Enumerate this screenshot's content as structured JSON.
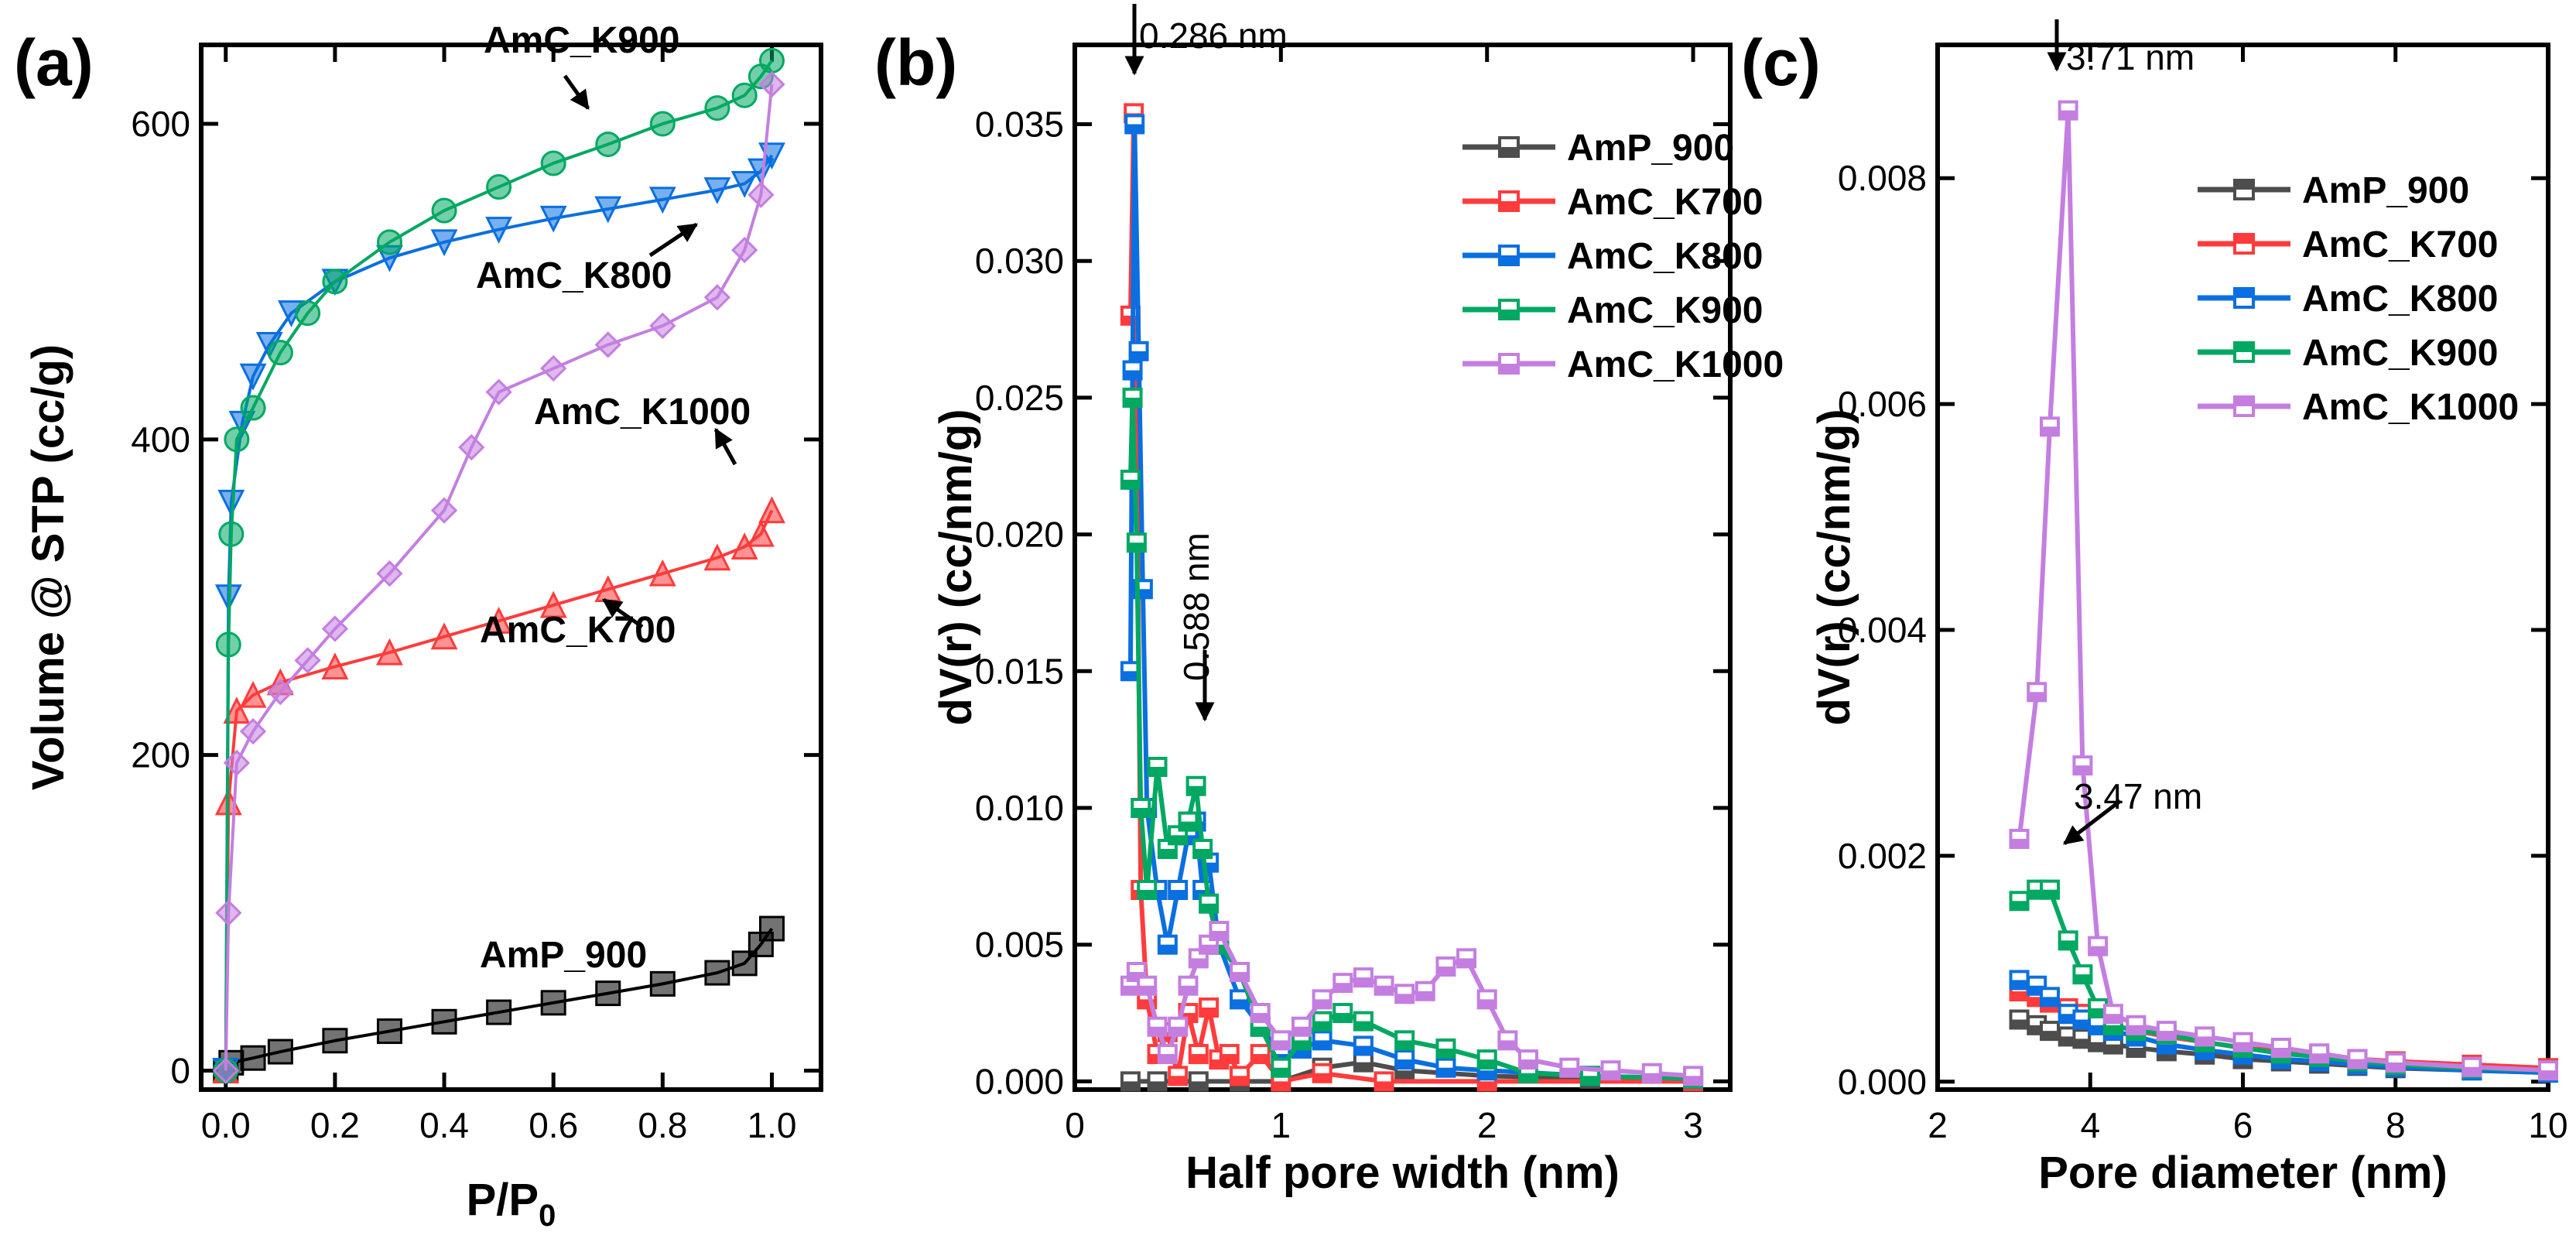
{
  "chart_data": [
    {
      "panel_label": "(a)",
      "type": "scatter",
      "xlabel": "P/P",
      "xlabel_sub": "0",
      "ylabel": "Volume @ STP (cc/g)",
      "xlim": [
        -0.045,
        1.09
      ],
      "ylim": [
        -12,
        650
      ],
      "xticks": [
        "0.0",
        "0.2",
        "0.4",
        "0.6",
        "0.8",
        "1.0"
      ],
      "yticks": [
        "0",
        "200",
        "400",
        "600"
      ],
      "series": [
        {
          "name": "AmP_900",
          "color": "#000000",
          "marker": "square",
          "x": [
            0,
            0.01,
            0.05,
            0.1,
            0.2,
            0.3,
            0.4,
            0.5,
            0.6,
            0.7,
            0.8,
            0.9,
            0.95,
            0.98,
            1.0
          ],
          "y": [
            0,
            5,
            8,
            12,
            19,
            25,
            31,
            37,
            43,
            49,
            55,
            62,
            68,
            80,
            90
          ]
        },
        {
          "name": "AmC_K700",
          "color": "#ff3b3b",
          "marker": "triangle-up",
          "x": [
            0,
            0.005,
            0.02,
            0.05,
            0.1,
            0.2,
            0.3,
            0.4,
            0.5,
            0.6,
            0.7,
            0.8,
            0.9,
            0.95,
            0.98,
            1.0
          ],
          "y": [
            0,
            170,
            228,
            238,
            246,
            256,
            265,
            275,
            285,
            295,
            305,
            315,
            325,
            332,
            340,
            355
          ]
        },
        {
          "name": "AmC_K800",
          "color": "#0a6fe0",
          "marker": "triangle-down",
          "x": [
            0,
            0.005,
            0.01,
            0.03,
            0.05,
            0.08,
            0.12,
            0.2,
            0.3,
            0.4,
            0.5,
            0.6,
            0.7,
            0.8,
            0.9,
            0.95,
            0.98,
            1.0
          ],
          "y": [
            0,
            300,
            360,
            410,
            440,
            460,
            480,
            500,
            515,
            525,
            533,
            540,
            546,
            552,
            558,
            562,
            570,
            580
          ]
        },
        {
          "name": "AmC_K900",
          "color": "#00a862",
          "marker": "circle",
          "x": [
            0,
            0.005,
            0.01,
            0.02,
            0.05,
            0.1,
            0.15,
            0.2,
            0.3,
            0.4,
            0.5,
            0.6,
            0.7,
            0.8,
            0.9,
            0.95,
            0.98,
            1.0
          ],
          "y": [
            0,
            270,
            340,
            400,
            420,
            455,
            480,
            500,
            525,
            545,
            560,
            575,
            587,
            600,
            610,
            618,
            630,
            640
          ]
        },
        {
          "name": "AmC_K1000",
          "color": "#c47ee0",
          "marker": "diamond",
          "x": [
            0,
            0.005,
            0.02,
            0.05,
            0.1,
            0.15,
            0.2,
            0.3,
            0.4,
            0.45,
            0.5,
            0.6,
            0.7,
            0.8,
            0.9,
            0.95,
            0.98,
            1.0
          ],
          "y": [
            0,
            100,
            195,
            215,
            240,
            260,
            280,
            315,
            355,
            395,
            430,
            445,
            460,
            472,
            490,
            520,
            555,
            625
          ]
        }
      ],
      "annotations": [
        "AmC_K900",
        "AmC_K800",
        "AmC_K1000",
        "AmC_K700",
        "AmP_900"
      ]
    },
    {
      "panel_label": "(b)",
      "type": "line",
      "xlabel": "Half pore width (nm)",
      "ylabel": "dV(r) (cc/nm/g)",
      "xlim": [
        0,
        3.18
      ],
      "ylim": [
        -0.0003,
        0.0379
      ],
      "xticks": [
        "0",
        "1",
        "2",
        "3"
      ],
      "yticks": [
        "0.000",
        "0.005",
        "0.010",
        "0.015",
        "0.020",
        "0.025",
        "0.030",
        "0.035"
      ],
      "series": [
        {
          "name": "AmP_900",
          "color": "#4d4d4d",
          "x": [
            0.27,
            0.4,
            0.6,
            0.8,
            1.0,
            1.2,
            1.4,
            1.6,
            2.0,
            2.5,
            3.0
          ],
          "y": [
            0,
            0,
            0,
            0,
            0,
            0.0005,
            0.0007,
            0.0004,
            0.0002,
            0.0001,
            0.0001
          ]
        },
        {
          "name": "AmC_K700",
          "color": "#ff3b3b",
          "x": [
            0.27,
            0.286,
            0.32,
            0.35,
            0.4,
            0.45,
            0.5,
            0.55,
            0.6,
            0.65,
            0.7,
            0.75,
            0.8,
            0.9,
            1.0,
            1.2,
            1.5,
            2.0,
            3.0
          ],
          "y": [
            0.028,
            0.0354,
            0.007,
            0.003,
            0.001,
            0.0018,
            0.0002,
            0.0025,
            0.001,
            0.0027,
            0.0008,
            0.001,
            0.0002,
            0.001,
            0,
            0.0003,
            0,
            0,
            0
          ]
        },
        {
          "name": "AmC_K800",
          "color": "#0a6fe0",
          "x": [
            0.27,
            0.28,
            0.29,
            0.31,
            0.33,
            0.35,
            0.4,
            0.45,
            0.5,
            0.55,
            0.588,
            0.62,
            0.65,
            0.7,
            0.8,
            0.9,
            1.0,
            1.1,
            1.2,
            1.4,
            1.6,
            1.8,
            2.0,
            2.5,
            3.0
          ],
          "y": [
            0.015,
            0.026,
            0.035,
            0.0267,
            0.018,
            0.01,
            0.007,
            0.005,
            0.007,
            0.009,
            0.0095,
            0.007,
            0.008,
            0.005,
            0.003,
            0.002,
            0.001,
            0.0012,
            0.0015,
            0.0013,
            0.0008,
            0.0005,
            0.0004,
            0.0002,
            0.0001
          ]
        },
        {
          "name": "AmC_K900",
          "color": "#00a862",
          "x": [
            0.27,
            0.28,
            0.3,
            0.32,
            0.35,
            0.4,
            0.45,
            0.5,
            0.55,
            0.588,
            0.62,
            0.65,
            0.7,
            0.8,
            0.9,
            1.0,
            1.1,
            1.2,
            1.3,
            1.4,
            1.6,
            1.8,
            2.0,
            2.2,
            2.5,
            3.0
          ],
          "y": [
            0.022,
            0.025,
            0.0197,
            0.01,
            0.007,
            0.0115,
            0.0085,
            0.009,
            0.0095,
            0.0108,
            0.0085,
            0.0065,
            0.005,
            0.004,
            0.002,
            0.0005,
            0.0015,
            0.0022,
            0.0025,
            0.0022,
            0.0015,
            0.0012,
            0.0008,
            0.0003,
            0.0002,
            0.0001
          ]
        },
        {
          "name": "AmC_K1000",
          "color": "#c47ee0",
          "x": [
            0.27,
            0.3,
            0.35,
            0.4,
            0.45,
            0.5,
            0.55,
            0.6,
            0.65,
            0.7,
            0.8,
            0.9,
            1.0,
            1.1,
            1.2,
            1.3,
            1.4,
            1.5,
            1.6,
            1.7,
            1.8,
            1.9,
            2.0,
            2.1,
            2.2,
            2.4,
            2.6,
            2.8,
            3.0
          ],
          "y": [
            0.0035,
            0.004,
            0.0035,
            0.002,
            0.001,
            0.002,
            0.0035,
            0.0045,
            0.005,
            0.0055,
            0.004,
            0.0025,
            0.0015,
            0.002,
            0.003,
            0.0036,
            0.0038,
            0.0035,
            0.0032,
            0.0033,
            0.0042,
            0.0045,
            0.003,
            0.0015,
            0.0008,
            0.0005,
            0.0004,
            0.0003,
            0.0002
          ]
        }
      ],
      "annotations": [
        "0.286 nm",
        "0.588 nm"
      ]
    },
    {
      "panel_label": "(c)",
      "type": "line",
      "xlabel": "Pore diameter (nm)",
      "ylabel": "dV(r) (cc/nm/g)",
      "xlim": [
        2,
        10
      ],
      "ylim": [
        -7e-05,
        0.00918
      ],
      "xticks": [
        "2",
        "4",
        "6",
        "8",
        "10"
      ],
      "yticks": [
        "0.000",
        "0.002",
        "0.004",
        "0.006",
        "0.008"
      ],
      "series": [
        {
          "name": "AmP_900",
          "color": "#4d4d4d",
          "x": [
            3.07,
            3.3,
            3.47,
            3.71,
            3.9,
            4.1,
            4.3,
            4.6,
            5,
            5.5,
            6,
            6.5,
            7,
            7.5,
            8,
            9,
            10
          ],
          "y": [
            0.00055,
            0.0005,
            0.00045,
            0.0004,
            0.00038,
            0.00035,
            0.00033,
            0.0003,
            0.00027,
            0.00024,
            0.0002,
            0.00018,
            0.00016,
            0.00014,
            0.00012,
            0.0001,
            8e-05
          ]
        },
        {
          "name": "AmC_K700",
          "color": "#ff3b3b",
          "x": [
            3.07,
            3.3,
            3.47,
            3.71,
            3.9,
            4.1,
            4.3,
            4.6,
            5,
            5.5,
            6,
            6.5,
            7,
            7.5,
            8,
            9,
            10
          ],
          "y": [
            0.0008,
            0.00075,
            0.0007,
            0.00065,
            0.0006,
            0.00055,
            0.0005,
            0.00045,
            0.0004,
            0.00035,
            0.0003,
            0.00027,
            0.00024,
            0.0002,
            0.00018,
            0.00015,
            0.00012
          ]
        },
        {
          "name": "AmC_K800",
          "color": "#0a6fe0",
          "x": [
            3.07,
            3.3,
            3.47,
            3.71,
            3.9,
            4.1,
            4.3,
            4.6,
            5,
            5.5,
            6,
            6.5,
            7,
            7.5,
            8,
            9,
            10
          ],
          "y": [
            0.0009,
            0.00085,
            0.00075,
            0.0006,
            0.00055,
            0.0005,
            0.00045,
            0.0004,
            0.00033,
            0.00028,
            0.00024,
            0.0002,
            0.00018,
            0.00015,
            0.00013,
            0.0001,
            8e-05
          ]
        },
        {
          "name": "AmC_K900",
          "color": "#00a862",
          "x": [
            3.07,
            3.3,
            3.47,
            3.71,
            3.9,
            4.1,
            4.3,
            4.6,
            5,
            5.5,
            6,
            6.5,
            7,
            7.5,
            8,
            9,
            10
          ],
          "y": [
            0.0016,
            0.0017,
            0.0017,
            0.00125,
            0.00095,
            0.00065,
            0.0005,
            0.00045,
            0.00042,
            0.00035,
            0.0003,
            0.00025,
            0.00022,
            0.00018,
            0.00015,
            0.00012,
            0.0001
          ]
        },
        {
          "name": "AmC_K1000",
          "color": "#c47ee0",
          "x": [
            3.07,
            3.3,
            3.47,
            3.71,
            3.9,
            4.1,
            4.3,
            4.6,
            5,
            5.5,
            6,
            6.5,
            7,
            7.5,
            8,
            9,
            10
          ],
          "y": [
            0.00215,
            0.00345,
            0.0058,
            0.0086,
            0.0028,
            0.0012,
            0.0006,
            0.0005,
            0.00045,
            0.0004,
            0.00035,
            0.0003,
            0.00025,
            0.0002,
            0.00017,
            0.00013,
            0.0001
          ]
        }
      ],
      "annotations": [
        "3.71 nm",
        "3.47 nm"
      ]
    }
  ]
}
